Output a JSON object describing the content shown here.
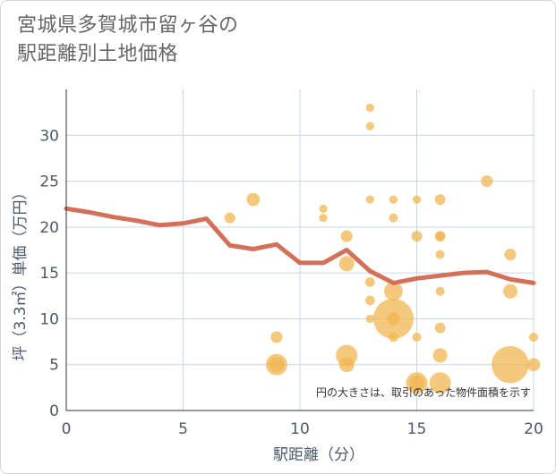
{
  "title_lines": [
    "宮城県多賀城市留ヶ谷の",
    "駅距離別土地価格"
  ],
  "chart_data": {
    "type": "scatter",
    "title": "宮城県多賀城市留ヶ谷の駅距離別土地価格",
    "xlabel": "駅距離（分）",
    "ylabel": "坪（3.3㎡）単価（万円）",
    "xlim": [
      0,
      20
    ],
    "ylim": [
      0,
      35
    ],
    "x_ticks": [
      0,
      5,
      10,
      15,
      20
    ],
    "y_ticks": [
      0,
      5,
      10,
      15,
      20,
      25,
      30
    ],
    "grid": true,
    "note": "円の大きさは、取引のあった物件面積を示す",
    "colors": {
      "bubble": "#f0b44c",
      "line": "#d4705a",
      "grid": "#c9d6e3"
    },
    "scatter": [
      {
        "x": 7,
        "y": 21,
        "s": 1
      },
      {
        "x": 8,
        "y": 23,
        "s": 1.5
      },
      {
        "x": 9,
        "y": 8,
        "s": 1.2
      },
      {
        "x": 9,
        "y": 5,
        "s": 4
      },
      {
        "x": 9,
        "y": 5,
        "s": 2
      },
      {
        "x": 11,
        "y": 22,
        "s": 0.6
      },
      {
        "x": 11,
        "y": 21,
        "s": 0.6
      },
      {
        "x": 12,
        "y": 19,
        "s": 1.2
      },
      {
        "x": 12,
        "y": 16,
        "s": 2
      },
      {
        "x": 12,
        "y": 6,
        "s": 4
      },
      {
        "x": 12,
        "y": 5,
        "s": 2
      },
      {
        "x": 13,
        "y": 33,
        "s": 0.6
      },
      {
        "x": 13,
        "y": 31,
        "s": 0.6
      },
      {
        "x": 13,
        "y": 23,
        "s": 0.6
      },
      {
        "x": 13,
        "y": 14,
        "s": 0.8
      },
      {
        "x": 13,
        "y": 12,
        "s": 0.8
      },
      {
        "x": 13,
        "y": 10,
        "s": 0.6
      },
      {
        "x": 14,
        "y": 23,
        "s": 0.6
      },
      {
        "x": 14,
        "y": 21,
        "s": 0.7
      },
      {
        "x": 14,
        "y": 13,
        "s": 3
      },
      {
        "x": 14,
        "y": 10,
        "s": 14
      },
      {
        "x": 14,
        "y": 10,
        "s": 1.5
      },
      {
        "x": 14,
        "y": 8,
        "s": 0.8
      },
      {
        "x": 15,
        "y": 23,
        "s": 0.6
      },
      {
        "x": 15,
        "y": 19,
        "s": 1
      },
      {
        "x": 15,
        "y": 8,
        "s": 0.7
      },
      {
        "x": 15,
        "y": 3,
        "s": 4
      },
      {
        "x": 15,
        "y": 3,
        "s": 2
      },
      {
        "x": 16,
        "y": 23,
        "s": 1
      },
      {
        "x": 16,
        "y": 19,
        "s": 1
      },
      {
        "x": 16,
        "y": 19,
        "s": 0.6
      },
      {
        "x": 16,
        "y": 17,
        "s": 0.7
      },
      {
        "x": 16,
        "y": 13,
        "s": 0.7
      },
      {
        "x": 16,
        "y": 9,
        "s": 1
      },
      {
        "x": 16,
        "y": 6,
        "s": 1.8
      },
      {
        "x": 16,
        "y": 3,
        "s": 4
      },
      {
        "x": 18,
        "y": 25,
        "s": 1.2
      },
      {
        "x": 19,
        "y": 17,
        "s": 1.2
      },
      {
        "x": 19,
        "y": 13,
        "s": 1.8
      },
      {
        "x": 19,
        "y": 5,
        "s": 12
      },
      {
        "x": 20,
        "y": 8,
        "s": 0.7
      },
      {
        "x": 20,
        "y": 5,
        "s": 1.5
      }
    ],
    "line": {
      "x": [
        0,
        1,
        2,
        3,
        4,
        5,
        6,
        7,
        8,
        9,
        10,
        11,
        12,
        13,
        14,
        15,
        16,
        17,
        18,
        19,
        20
      ],
      "y": [
        22,
        21.6,
        21.1,
        20.7,
        20.2,
        20.4,
        20.9,
        18,
        17.6,
        18.1,
        16.1,
        16.1,
        17.5,
        15.2,
        13.9,
        14.4,
        14.7,
        15,
        15.1,
        14.3,
        13.9
      ]
    }
  }
}
